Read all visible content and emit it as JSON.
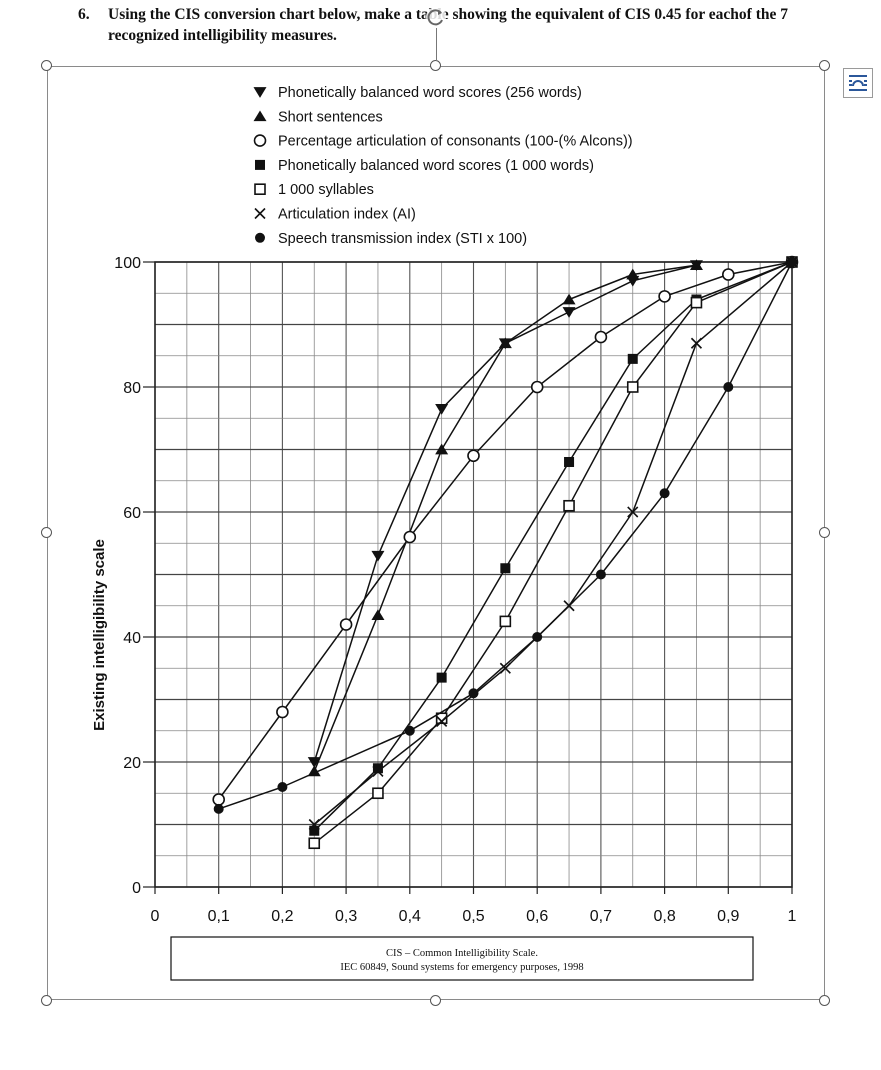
{
  "question": {
    "number": "6.",
    "text": "Using the CIS conversion chart below, make a table showing the equivalent of CIS 0.45 for eachof the 7 recognized intelligibility measures."
  },
  "source_caption": {
    "line1": "CIS – Common Intelligibility Scale.",
    "line2": "IEC 60849, Sound systems for emergency purposes, 1998"
  },
  "icons": {
    "rotate_handle": "rotate-arrow-icon",
    "layout_options": "layout-options-icon"
  },
  "chart_data": {
    "type": "line",
    "title": "",
    "xlabel": "",
    "ylabel": "Existing intelligibility scale",
    "xlim": [
      0,
      1
    ],
    "ylim": [
      0,
      100
    ],
    "x_ticks": [
      "0",
      "0,1",
      "0,2",
      "0,3",
      "0,4",
      "0,5",
      "0,6",
      "0,7",
      "0,8",
      "0,9",
      "1"
    ],
    "y_ticks": [
      "0",
      "20",
      "40",
      "60",
      "80",
      "100"
    ],
    "grid": true,
    "legend_position": "top",
    "series": [
      {
        "name": "Phonetically balanced word scores (256 words)",
        "marker": "triangle-down",
        "points": [
          [
            0.25,
            20
          ],
          [
            0.35,
            53
          ],
          [
            0.45,
            76.5
          ],
          [
            0.55,
            87
          ],
          [
            0.65,
            92
          ],
          [
            0.75,
            97
          ],
          [
            0.85,
            99.5
          ]
        ]
      },
      {
        "name": "Short sentences",
        "marker": "triangle-up",
        "points": [
          [
            0.25,
            18.5
          ],
          [
            0.35,
            43.5
          ],
          [
            0.45,
            70
          ],
          [
            0.55,
            87
          ],
          [
            0.65,
            94
          ],
          [
            0.75,
            98
          ],
          [
            0.85,
            99.5
          ]
        ]
      },
      {
        "name": "Percentage articulation of consonants (100-(% Alcons))",
        "marker": "circle-open",
        "points": [
          [
            0.1,
            14
          ],
          [
            0.2,
            28
          ],
          [
            0.3,
            42
          ],
          [
            0.4,
            56
          ],
          [
            0.5,
            69
          ],
          [
            0.6,
            80
          ],
          [
            0.7,
            88
          ],
          [
            0.8,
            94.5
          ],
          [
            0.9,
            98
          ],
          [
            1.0,
            100
          ]
        ]
      },
      {
        "name": "Phonetically balanced word scores (1 000 words)",
        "marker": "square-filled",
        "points": [
          [
            0.25,
            9
          ],
          [
            0.35,
            19
          ],
          [
            0.45,
            33.5
          ],
          [
            0.55,
            51
          ],
          [
            0.65,
            68
          ],
          [
            0.75,
            84.5
          ],
          [
            0.85,
            94
          ],
          [
            1.0,
            100
          ]
        ]
      },
      {
        "name": "1 000 syllables",
        "marker": "square-open",
        "points": [
          [
            0.25,
            7
          ],
          [
            0.35,
            15
          ],
          [
            0.45,
            27
          ],
          [
            0.55,
            42.5
          ],
          [
            0.65,
            61
          ],
          [
            0.75,
            80
          ],
          [
            0.85,
            93.5
          ],
          [
            1.0,
            100
          ]
        ]
      },
      {
        "name": "Articulation index (AI)",
        "marker": "x",
        "points": [
          [
            0.25,
            10
          ],
          [
            0.35,
            18.5
          ],
          [
            0.45,
            26.5
          ],
          [
            0.55,
            35
          ],
          [
            0.65,
            45
          ],
          [
            0.75,
            60
          ],
          [
            0.85,
            87
          ],
          [
            1.0,
            100
          ]
        ]
      },
      {
        "name": "Speech transmission index (STI x 100)",
        "marker": "circle-filled",
        "points": [
          [
            0.1,
            12.5
          ],
          [
            0.2,
            16
          ],
          [
            0.4,
            25
          ],
          [
            0.5,
            31
          ],
          [
            0.6,
            40
          ],
          [
            0.7,
            50
          ],
          [
            0.8,
            63
          ],
          [
            0.9,
            80
          ],
          [
            1.0,
            100
          ]
        ]
      }
    ]
  }
}
